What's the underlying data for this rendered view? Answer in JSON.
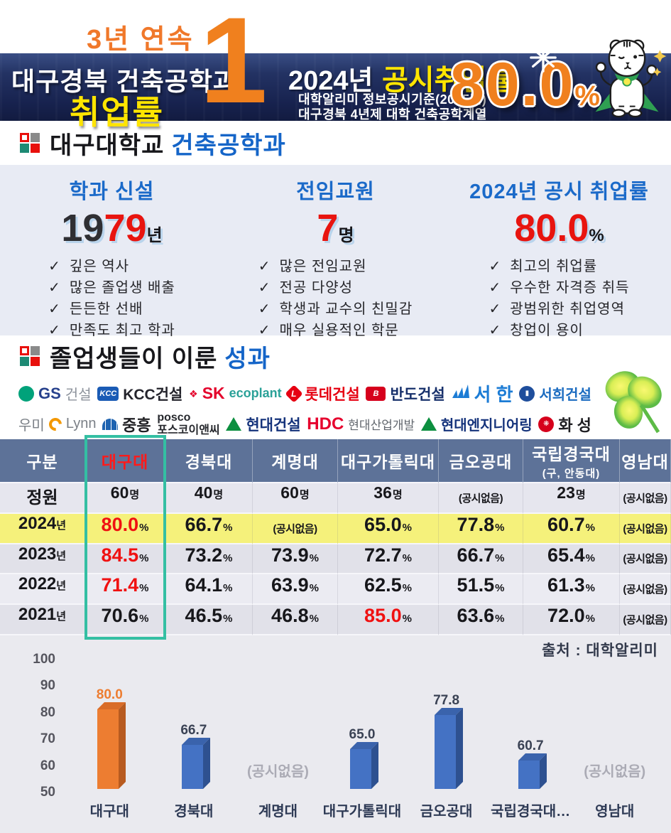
{
  "banner": {
    "badge": "3년 연속",
    "title": "대구경북 건축공학과",
    "subtitle": "취업률",
    "rank": "1",
    "year": "2024년",
    "rate_label": "공시취업률",
    "note1": "대학알리미 정보공시기준(2025년)",
    "note2": "대구경북 4년제 대학 건축공학계열",
    "big_rate": "80.0",
    "percent": "%",
    "mascot_icon": "white-tiger-mascot",
    "accent_orange": "#F0801E",
    "accent_yellow": "#FFE500",
    "navy": "#17224E"
  },
  "department": {
    "title_black": "대구대학교",
    "title_blue": "건축공학과",
    "columns": [
      {
        "header": "학과 신설",
        "value_black": "19",
        "value_red": "79",
        "unit": "년",
        "items": [
          "깊은 역사",
          "많은 졸업생 배출",
          "든든한 선배",
          "만족도 최고 학과"
        ]
      },
      {
        "header": "전임교원",
        "value_black": "",
        "value_red": "7",
        "unit": "명",
        "items": [
          "많은 전임교원",
          "전공 다양성",
          "학생과 교수의 친밀감",
          "매우 실용적인 학문"
        ]
      },
      {
        "header": "2024년 공시 취업률",
        "value_black": "",
        "value_red": "80.0",
        "unit": "%",
        "items": [
          "최고의 취업률",
          "우수한 자격증 취득",
          "광범위한 취업영역",
          "창업이 용이"
        ]
      }
    ],
    "check_glyph": "✓"
  },
  "achievements": {
    "title_black": "졸업생들이 이룬",
    "title_blue": "성과",
    "clover_icon": "clover-graphic",
    "companies_row1": [
      {
        "id": "gs",
        "mark": {
          "type": "circle",
          "color": "#00A27A",
          "text": "",
          "icon": "gs-swirl-icon"
        },
        "parts": [
          {
            "t": "GS",
            "c": "#27418C",
            "b": true,
            "fs": 22
          },
          {
            "t": "건설",
            "c": "#8D939C",
            "b": false,
            "fs": 20
          }
        ]
      },
      {
        "id": "kcc",
        "mark": {
          "type": "square",
          "color": "#1A5BB5",
          "text": "KCC",
          "icon": "kcc-box-icon"
        },
        "parts": [
          {
            "t": "KCC건설",
            "c": "#23232B",
            "b": true,
            "fs": 21
          }
        ]
      },
      {
        "id": "sk-ecoplant",
        "mark": {
          "type": "butterfly",
          "color": "#E4002B",
          "text": "",
          "icon": "sk-butterfly-icon"
        },
        "parts": [
          {
            "t": "SK",
            "c": "#E4002B",
            "b": true,
            "fs": 23
          },
          {
            "t": "ecoplant",
            "c": "#2AA198",
            "b": true,
            "fs": 18
          }
        ]
      },
      {
        "id": "lotte",
        "mark": {
          "type": "diamond",
          "color": "#E60012",
          "text": "L",
          "icon": "lotte-mark-icon"
        },
        "parts": [
          {
            "t": "롯데건설",
            "c": "#E60012",
            "b": true,
            "fs": 21
          }
        ]
      },
      {
        "id": "bando",
        "mark": {
          "type": "square",
          "color": "#D6001C",
          "text": "B",
          "icon": "bando-mark-icon"
        },
        "parts": [
          {
            "t": "반도건설",
            "c": "#17306B",
            "b": true,
            "fs": 21
          }
        ]
      },
      {
        "id": "seohan",
        "mark": {
          "type": "waves",
          "color": "#1C7CD5",
          "text": "",
          "icon": "seohan-waves-icon"
        },
        "parts": [
          {
            "t": "서 한",
            "c": "#1C7CD5",
            "b": true,
            "fs": 26
          }
        ]
      },
      {
        "id": "seohee",
        "mark": {
          "type": "circle",
          "color": "#1F4E9C",
          "text": "▮",
          "icon": "seohee-mark-icon"
        },
        "parts": [
          {
            "t": "서희건설",
            "c": "#1A6BC0",
            "b": true,
            "fs": 20
          }
        ]
      }
    ],
    "companies_row2": [
      {
        "id": "woomi-lynn",
        "pre": {
          "t": "우미",
          "c": "#7B8087",
          "fs": 20
        },
        "mark": {
          "type": "arc",
          "color": "#F39800",
          "text": "",
          "icon": "woomi-c-icon"
        },
        "parts": [
          {
            "t": "Lynn",
            "c": "#7B8087",
            "b": false,
            "fs": 20
          }
        ]
      },
      {
        "id": "jungheung",
        "mark": {
          "type": "arch",
          "color": "#1E63B0",
          "text": "",
          "icon": "jungheung-arch-icon"
        },
        "parts": [
          {
            "t": "중흥",
            "c": "#1E1E22",
            "b": true,
            "fs": 22
          }
        ]
      },
      {
        "id": "posco-enc",
        "mark": {
          "type": "none",
          "color": "",
          "text": "",
          "icon": "posco-wordmark"
        },
        "stack": [
          "posco",
          "포스코이앤씨"
        ],
        "stack_color": "#26282D",
        "parts": []
      },
      {
        "id": "hyundai-enc",
        "mark": {
          "type": "triangle",
          "color": "#0C8F3F",
          "text": "",
          "icon": "hyundai-triangle-icon"
        },
        "parts": [
          {
            "t": "현대건설",
            "c": "#15337B",
            "b": true,
            "fs": 21
          }
        ]
      },
      {
        "id": "hdc",
        "mark": {
          "type": "none",
          "color": "",
          "text": "",
          "icon": "hdc-wordmark"
        },
        "parts": [
          {
            "t": "HDC",
            "c": "#E6002D",
            "b": true,
            "fs": 24
          },
          {
            "t": "현대산업개발",
            "c": "#62676E",
            "b": false,
            "fs": 17
          }
        ]
      },
      {
        "id": "hyundai-eng",
        "mark": {
          "type": "triangle",
          "color": "#0C8F3F",
          "text": "",
          "icon": "hyundai-triangle-icon"
        },
        "parts": [
          {
            "t": "현대엔지니어링",
            "c": "#15337B",
            "b": true,
            "fs": 20
          }
        ]
      },
      {
        "id": "hwasung",
        "mark": {
          "type": "circle",
          "color": "#D6001C",
          "text": "❋",
          "icon": "hwasung-mark-icon"
        },
        "parts": [
          {
            "t": "화 성",
            "c": "#1E1E22",
            "b": true,
            "fs": 22
          }
        ]
      }
    ]
  },
  "table": {
    "headers": [
      {
        "main": "구분"
      },
      {
        "main": "대구대",
        "highlight": true
      },
      {
        "main": "경북대"
      },
      {
        "main": "계명대"
      },
      {
        "main": "대구가톨릭대"
      },
      {
        "main": "금오공대"
      },
      {
        "main": "국립경국대",
        "sub": "(구, 안동대)"
      },
      {
        "main": "영남대"
      }
    ],
    "rows": [
      {
        "label": "정원",
        "suffix": "",
        "small": true,
        "cells": [
          {
            "v": "60",
            "u": "명"
          },
          {
            "v": "40",
            "u": "명"
          },
          {
            "v": "60",
            "u": "명"
          },
          {
            "v": "36",
            "u": "명"
          },
          {
            "na": "(공시없음)"
          },
          {
            "v": "23",
            "u": "명"
          },
          {
            "na": "(공시없음)"
          }
        ]
      },
      {
        "label": "2024",
        "suffix": "년",
        "highlight": true,
        "cells": [
          {
            "v": "80.0",
            "u": "%",
            "red": true
          },
          {
            "v": "66.7",
            "u": "%"
          },
          {
            "na": "(공시없음)"
          },
          {
            "v": "65.0",
            "u": "%"
          },
          {
            "v": "77.8",
            "u": "%"
          },
          {
            "v": "60.7",
            "u": "%"
          },
          {
            "na": "(공시없음)"
          }
        ]
      },
      {
        "label": "2023",
        "suffix": "년",
        "cells": [
          {
            "v": "84.5",
            "u": "%",
            "red": true
          },
          {
            "v": "73.2",
            "u": "%"
          },
          {
            "v": "73.9",
            "u": "%"
          },
          {
            "v": "72.7",
            "u": "%"
          },
          {
            "v": "66.7",
            "u": "%"
          },
          {
            "v": "65.4",
            "u": "%"
          },
          {
            "na": "(공시없음)"
          }
        ]
      },
      {
        "label": "2022",
        "suffix": "년",
        "cells": [
          {
            "v": "71.4",
            "u": "%",
            "red": true
          },
          {
            "v": "64.1",
            "u": "%"
          },
          {
            "v": "63.9",
            "u": "%"
          },
          {
            "v": "62.5",
            "u": "%"
          },
          {
            "v": "51.5",
            "u": "%"
          },
          {
            "v": "61.3",
            "u": "%"
          },
          {
            "na": "(공시없음)"
          }
        ]
      },
      {
        "label": "2021",
        "suffix": "년",
        "cells": [
          {
            "v": "70.6",
            "u": "%"
          },
          {
            "v": "46.5",
            "u": "%"
          },
          {
            "v": "46.8",
            "u": "%"
          },
          {
            "v": "85.0",
            "u": "%",
            "red": true
          },
          {
            "v": "63.6",
            "u": "%"
          },
          {
            "v": "72.0",
            "u": "%"
          },
          {
            "na": "(공시없음)"
          }
        ]
      }
    ],
    "highlight_column": "대구대",
    "highlight_border_color": "#34BFA3",
    "highlight_row_color": "#F5F17B"
  },
  "chart_data": {
    "type": "bar",
    "title": "",
    "xlabel": "",
    "ylabel": "",
    "categories": [
      "대구대",
      "경북대",
      "계명대",
      "대구가톨릭대",
      "금오공대",
      "국립경국대…",
      "영남대"
    ],
    "values": [
      80.0,
      66.7,
      null,
      65.0,
      77.8,
      60.7,
      null
    ],
    "na_label": "(공시없음)",
    "ylim": [
      50,
      100
    ],
    "yticks": [
      50,
      60,
      70,
      80,
      90,
      100
    ],
    "grid": false,
    "legend": false,
    "bar_color": "#4472C4",
    "highlight_bar_color": "#ED7D31",
    "highlight_index": 0,
    "source": "출처 : 대학알리미"
  }
}
